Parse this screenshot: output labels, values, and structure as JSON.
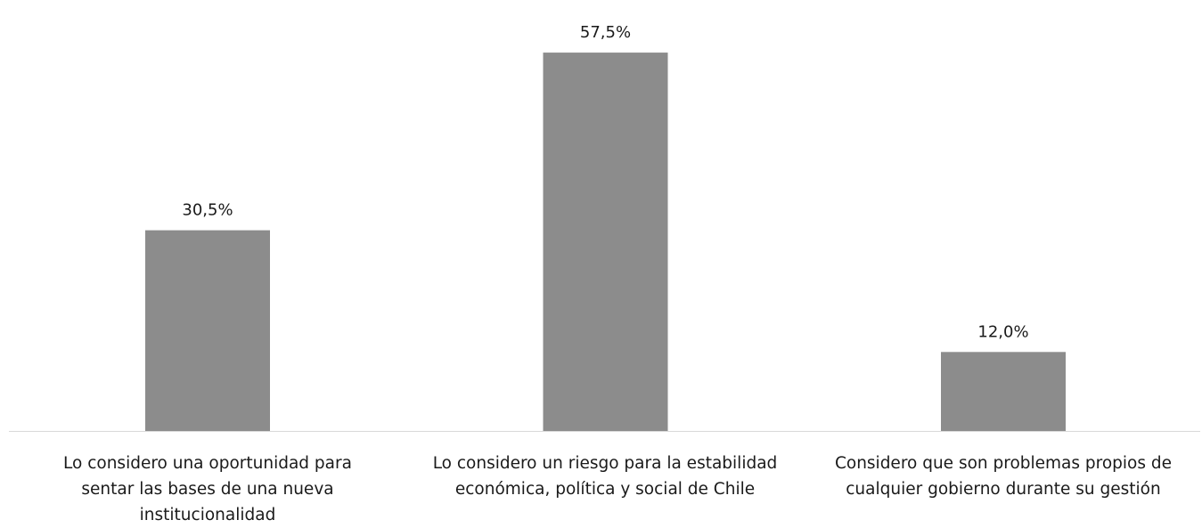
{
  "chart_data": {
    "type": "bar",
    "categories": [
      "Lo considero una oportunidad para sentar las bases de una nueva institucionalidad",
      "Lo considero un riesgo para la estabilidad económica, política y social de Chile",
      "Considero que son problemas propios de cualquier gobierno durante su gestión"
    ],
    "category_lines": [
      [
        "Lo considero una oportunidad para",
        "sentar las bases de una nueva",
        "institucionalidad"
      ],
      [
        "Lo considero un riesgo para la estabilidad",
        "económica, política y social de Chile"
      ],
      [
        "Considero que son problemas propios de",
        "cualquier gobierno durante su gestión"
      ]
    ],
    "values": [
      30.5,
      57.5,
      12.0
    ],
    "data_labels": [
      "30,5%",
      "57,5%",
      "12,0%"
    ],
    "unit": "%",
    "title": "",
    "xlabel": "",
    "ylabel": "",
    "ylim": [
      0,
      60
    ],
    "grid": false,
    "legend": "none",
    "bar_color": "#8c8c8c",
    "axis_color": "#d9d9d9"
  }
}
